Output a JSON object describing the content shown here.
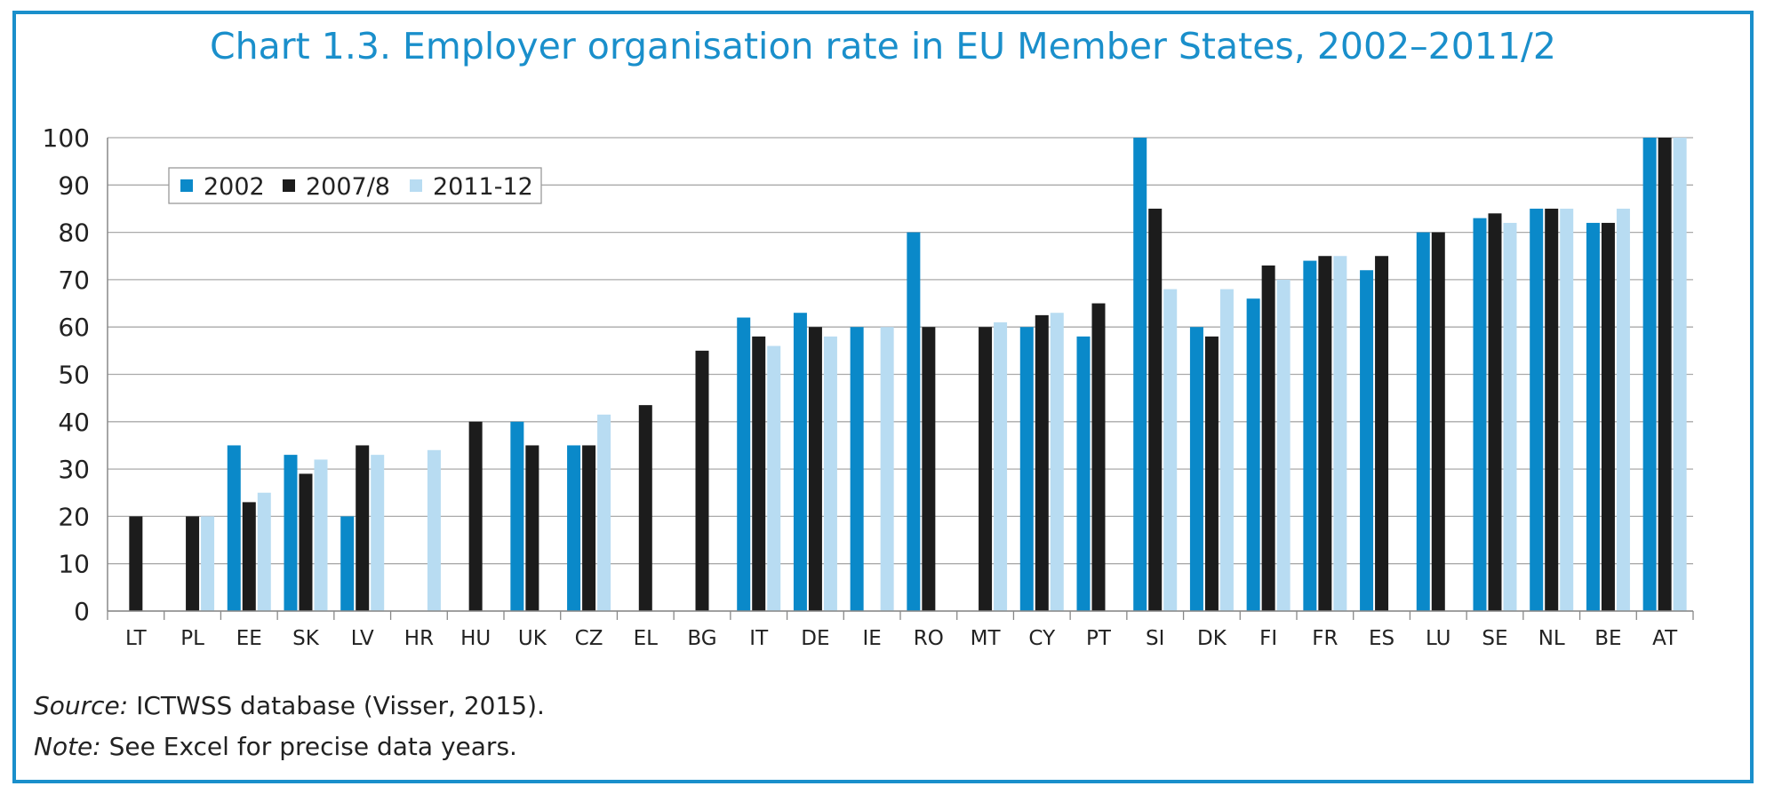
{
  "title": "Chart 1.3. Employer organisation rate in EU Member States, 2002–2011/2",
  "source_label": "Source:",
  "source_text": " ICTWSS database (Visser, 2015).",
  "note_label": "Note:",
  "note_text": " See Excel for precise data years.",
  "colors": {
    "frame": "#1a8fcb",
    "title": "#1a8fcb",
    "s2002": "#0a89c9",
    "s2007": "#1c1c1c",
    "s2011": "#b8dcf2",
    "grid": "#aaaaaa"
  },
  "chart_data": {
    "type": "bar",
    "categories": [
      "LT",
      "PL",
      "EE",
      "SK",
      "LV",
      "HR",
      "HU",
      "UK",
      "CZ",
      "EL",
      "BG",
      "IT",
      "DE",
      "IE",
      "RO",
      "MT",
      "CY",
      "PT",
      "SI",
      "DK",
      "FI",
      "FR",
      "ES",
      "LU",
      "SE",
      "NL",
      "BE",
      "AT"
    ],
    "series": [
      {
        "name": "2002",
        "values": [
          null,
          null,
          35,
          33,
          20,
          null,
          null,
          40,
          35,
          null,
          null,
          62,
          63,
          60,
          80,
          null,
          60,
          58,
          100,
          60,
          66,
          74,
          72,
          80,
          83,
          85,
          82,
          100
        ]
      },
      {
        "name": "2007/8",
        "values": [
          20,
          20,
          23,
          29,
          35,
          null,
          40,
          35,
          35,
          43.5,
          55,
          58,
          60,
          null,
          60,
          60,
          62.5,
          65,
          85,
          58,
          73,
          75,
          75,
          80,
          84,
          85,
          82,
          100
        ]
      },
      {
        "name": "2011-12",
        "values": [
          null,
          20,
          25,
          32,
          33,
          34,
          null,
          null,
          41.5,
          null,
          null,
          56,
          58,
          60,
          null,
          61,
          63,
          null,
          68,
          68,
          70,
          75,
          null,
          null,
          82,
          85,
          85,
          100
        ]
      }
    ],
    "yticks": [
      0,
      10,
      20,
      30,
      40,
      50,
      60,
      70,
      80,
      90,
      100
    ],
    "ylim": [
      0,
      100
    ],
    "xlabel": "",
    "ylabel": "",
    "grid": true,
    "legend_position": "top-left"
  }
}
